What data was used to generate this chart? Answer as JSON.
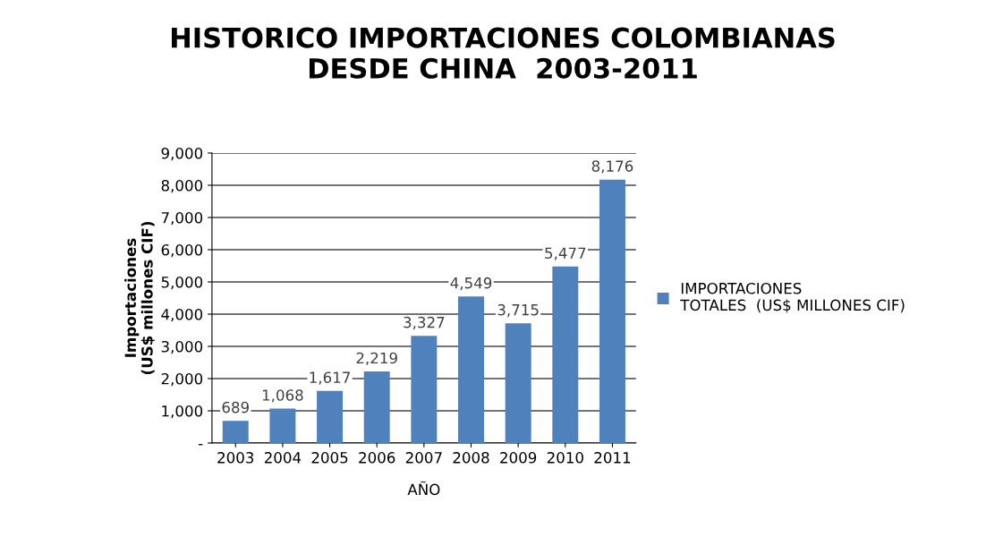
{
  "chart_data": {
    "type": "bar",
    "title": "HISTORICO IMPORTACIONES COLOMBIANAS\nDESDE CHINA  2003-2011",
    "categories": [
      "2003",
      "2004",
      "2005",
      "2006",
      "2007",
      "2008",
      "2009",
      "2010",
      "2011"
    ],
    "series": [
      {
        "name": "IMPORTACIONES\nTOTALES  (US$ MILLONES CIF)",
        "color": "#4f81bd",
        "values": [
          689,
          1068,
          1617,
          2219,
          3327,
          4549,
          3715,
          5477,
          8176
        ],
        "value_labels": [
          "689",
          "1,068",
          "1,617",
          "2,219",
          "3,327",
          "4,549",
          "3,715",
          "5,477",
          "8,176"
        ]
      }
    ],
    "xlabel": "AÑO",
    "ylabel": "Importaciones\n(US$ millones CIF)",
    "ylim": [
      0,
      9000
    ],
    "yticks": [
      {
        "value": 0,
        "label": "-"
      },
      {
        "value": 1000,
        "label": "1,000"
      },
      {
        "value": 2000,
        "label": "2,000"
      },
      {
        "value": 3000,
        "label": "3,000"
      },
      {
        "value": 4000,
        "label": "4,000"
      },
      {
        "value": 5000,
        "label": "5,000"
      },
      {
        "value": 6000,
        "label": "6,000"
      },
      {
        "value": 7000,
        "label": "7,000"
      },
      {
        "value": 8000,
        "label": "8,000"
      },
      {
        "value": 9000,
        "label": "9,000"
      }
    ],
    "grid": "y",
    "legend": "right"
  }
}
